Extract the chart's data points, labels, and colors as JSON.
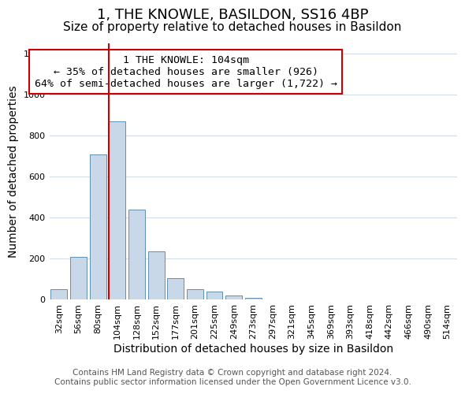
{
  "title": "1, THE KNOWLE, BASILDON, SS16 4BP",
  "subtitle": "Size of property relative to detached houses in Basildon",
  "xlabel": "Distribution of detached houses by size in Basildon",
  "ylabel": "Number of detached properties",
  "bar_labels": [
    "32sqm",
    "56sqm",
    "80sqm",
    "104sqm",
    "128sqm",
    "152sqm",
    "177sqm",
    "201sqm",
    "225sqm",
    "249sqm",
    "273sqm",
    "297sqm",
    "321sqm",
    "345sqm",
    "369sqm",
    "393sqm",
    "418sqm",
    "442sqm",
    "466sqm",
    "490sqm",
    "514sqm"
  ],
  "bar_values": [
    50,
    210,
    710,
    870,
    440,
    235,
    105,
    50,
    40,
    20,
    10,
    0,
    0,
    0,
    0,
    0,
    0,
    0,
    0,
    0,
    0
  ],
  "bar_color": "#c8d8e8",
  "bar_edge_color": "#6090b0",
  "property_line_color": "#cc0000",
  "annotation_line1": "1 THE KNOWLE: 104sqm",
  "annotation_line2": "← 35% of detached houses are smaller (926)",
  "annotation_line3": "64% of semi-detached houses are larger (1,722) →",
  "annotation_box_color": "#ffffff",
  "annotation_box_edge": "#cc0000",
  "ylim": [
    0,
    1250
  ],
  "yticks": [
    0,
    200,
    400,
    600,
    800,
    1000,
    1200
  ],
  "footer_text": "Contains HM Land Registry data © Crown copyright and database right 2024.\nContains public sector information licensed under the Open Government Licence v3.0.",
  "background_color": "#ffffff",
  "grid_color": "#d0dce8",
  "title_fontsize": 13,
  "subtitle_fontsize": 11,
  "axis_label_fontsize": 10,
  "tick_fontsize": 8,
  "annotation_fontsize": 9.5,
  "footer_fontsize": 7.5
}
